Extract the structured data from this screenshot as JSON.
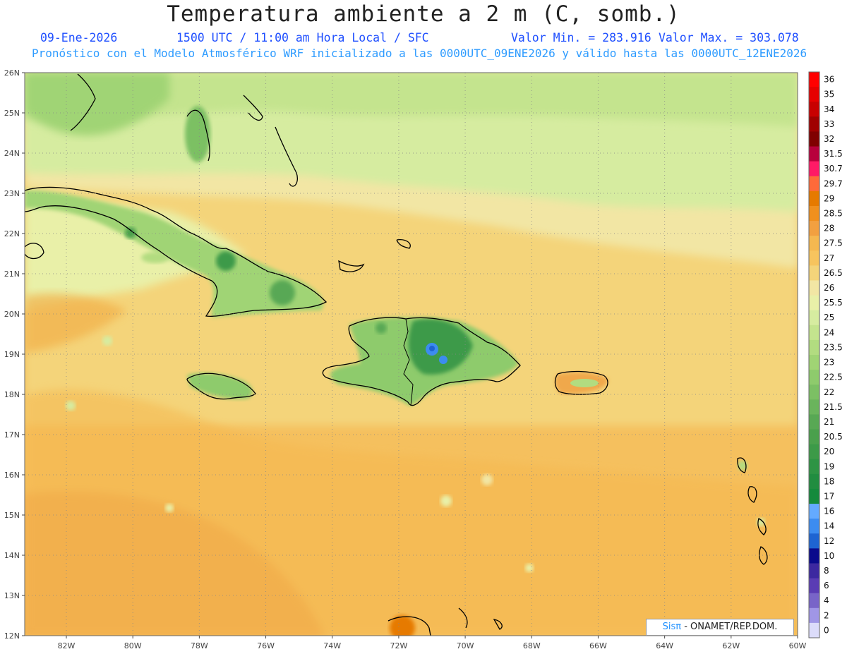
{
  "title": "Temperatura ambiente a 2 m (C, somb.)",
  "header": {
    "date": "09-Ene-2026",
    "time": "1500 UTC / 11:00 am Hora Local / SFC",
    "min_label": "Valor Min. = 283.916",
    "max_label": "Valor Max. = 303.078",
    "forecast_line": "Pronóstico con el Modelo Atmosférico WRF inicializado a las 0000UTC_09ENE2026 y válido hasta las  0000UTC_12ENE2026"
  },
  "axes": {
    "lat_labels": [
      "26N",
      "25N",
      "24N",
      "23N",
      "22N",
      "21N",
      "20N",
      "19N",
      "18N",
      "17N",
      "16N",
      "15N",
      "14N",
      "13N",
      "12N"
    ],
    "lon_labels": [
      "82W",
      "80W",
      "78W",
      "76W",
      "74W",
      "72W",
      "70W",
      "68W",
      "66W",
      "64W",
      "62W",
      "60W"
    ]
  },
  "colorbar": {
    "levels": [
      "36",
      "35",
      "34",
      "33",
      "32",
      "31.5",
      "30.7",
      "29.7",
      "29",
      "28.5",
      "28",
      "27.5",
      "27",
      "26.5",
      "26",
      "25.5",
      "25",
      "24",
      "23.5",
      "23",
      "22.5",
      "22",
      "21.5",
      "21",
      "20.5",
      "20",
      "19",
      "18",
      "17",
      "16",
      "14",
      "12",
      "10",
      "8",
      "6",
      "4",
      "2",
      "0"
    ],
    "colors": [
      "#ff0000",
      "#e60000",
      "#c80000",
      "#a00000",
      "#800000",
      "#b8003c",
      "#ff1a66",
      "#ff6a3a",
      "#e67a00",
      "#f0901e",
      "#f2a040",
      "#f5b850",
      "#f7c45e",
      "#f4d47a",
      "#f2e6a4",
      "#e9f0a8",
      "#d6eca0",
      "#c4e48e",
      "#b2dc80",
      "#a0d474",
      "#8ecb6c",
      "#7cc064",
      "#6ab45c",
      "#58a854",
      "#4aa04c",
      "#3c9a48",
      "#2e9444",
      "#218d40",
      "#158a3c",
      "#64aaff",
      "#3c8cf0",
      "#1e64d2",
      "#0a0a8c",
      "#3c28a0",
      "#5a3cb4",
      "#7864c8",
      "#a096e6",
      "#dcdcfa"
    ]
  },
  "credit": {
    "brand": "Sisπ",
    "text": " - ONAMET/REP.DOM."
  }
}
